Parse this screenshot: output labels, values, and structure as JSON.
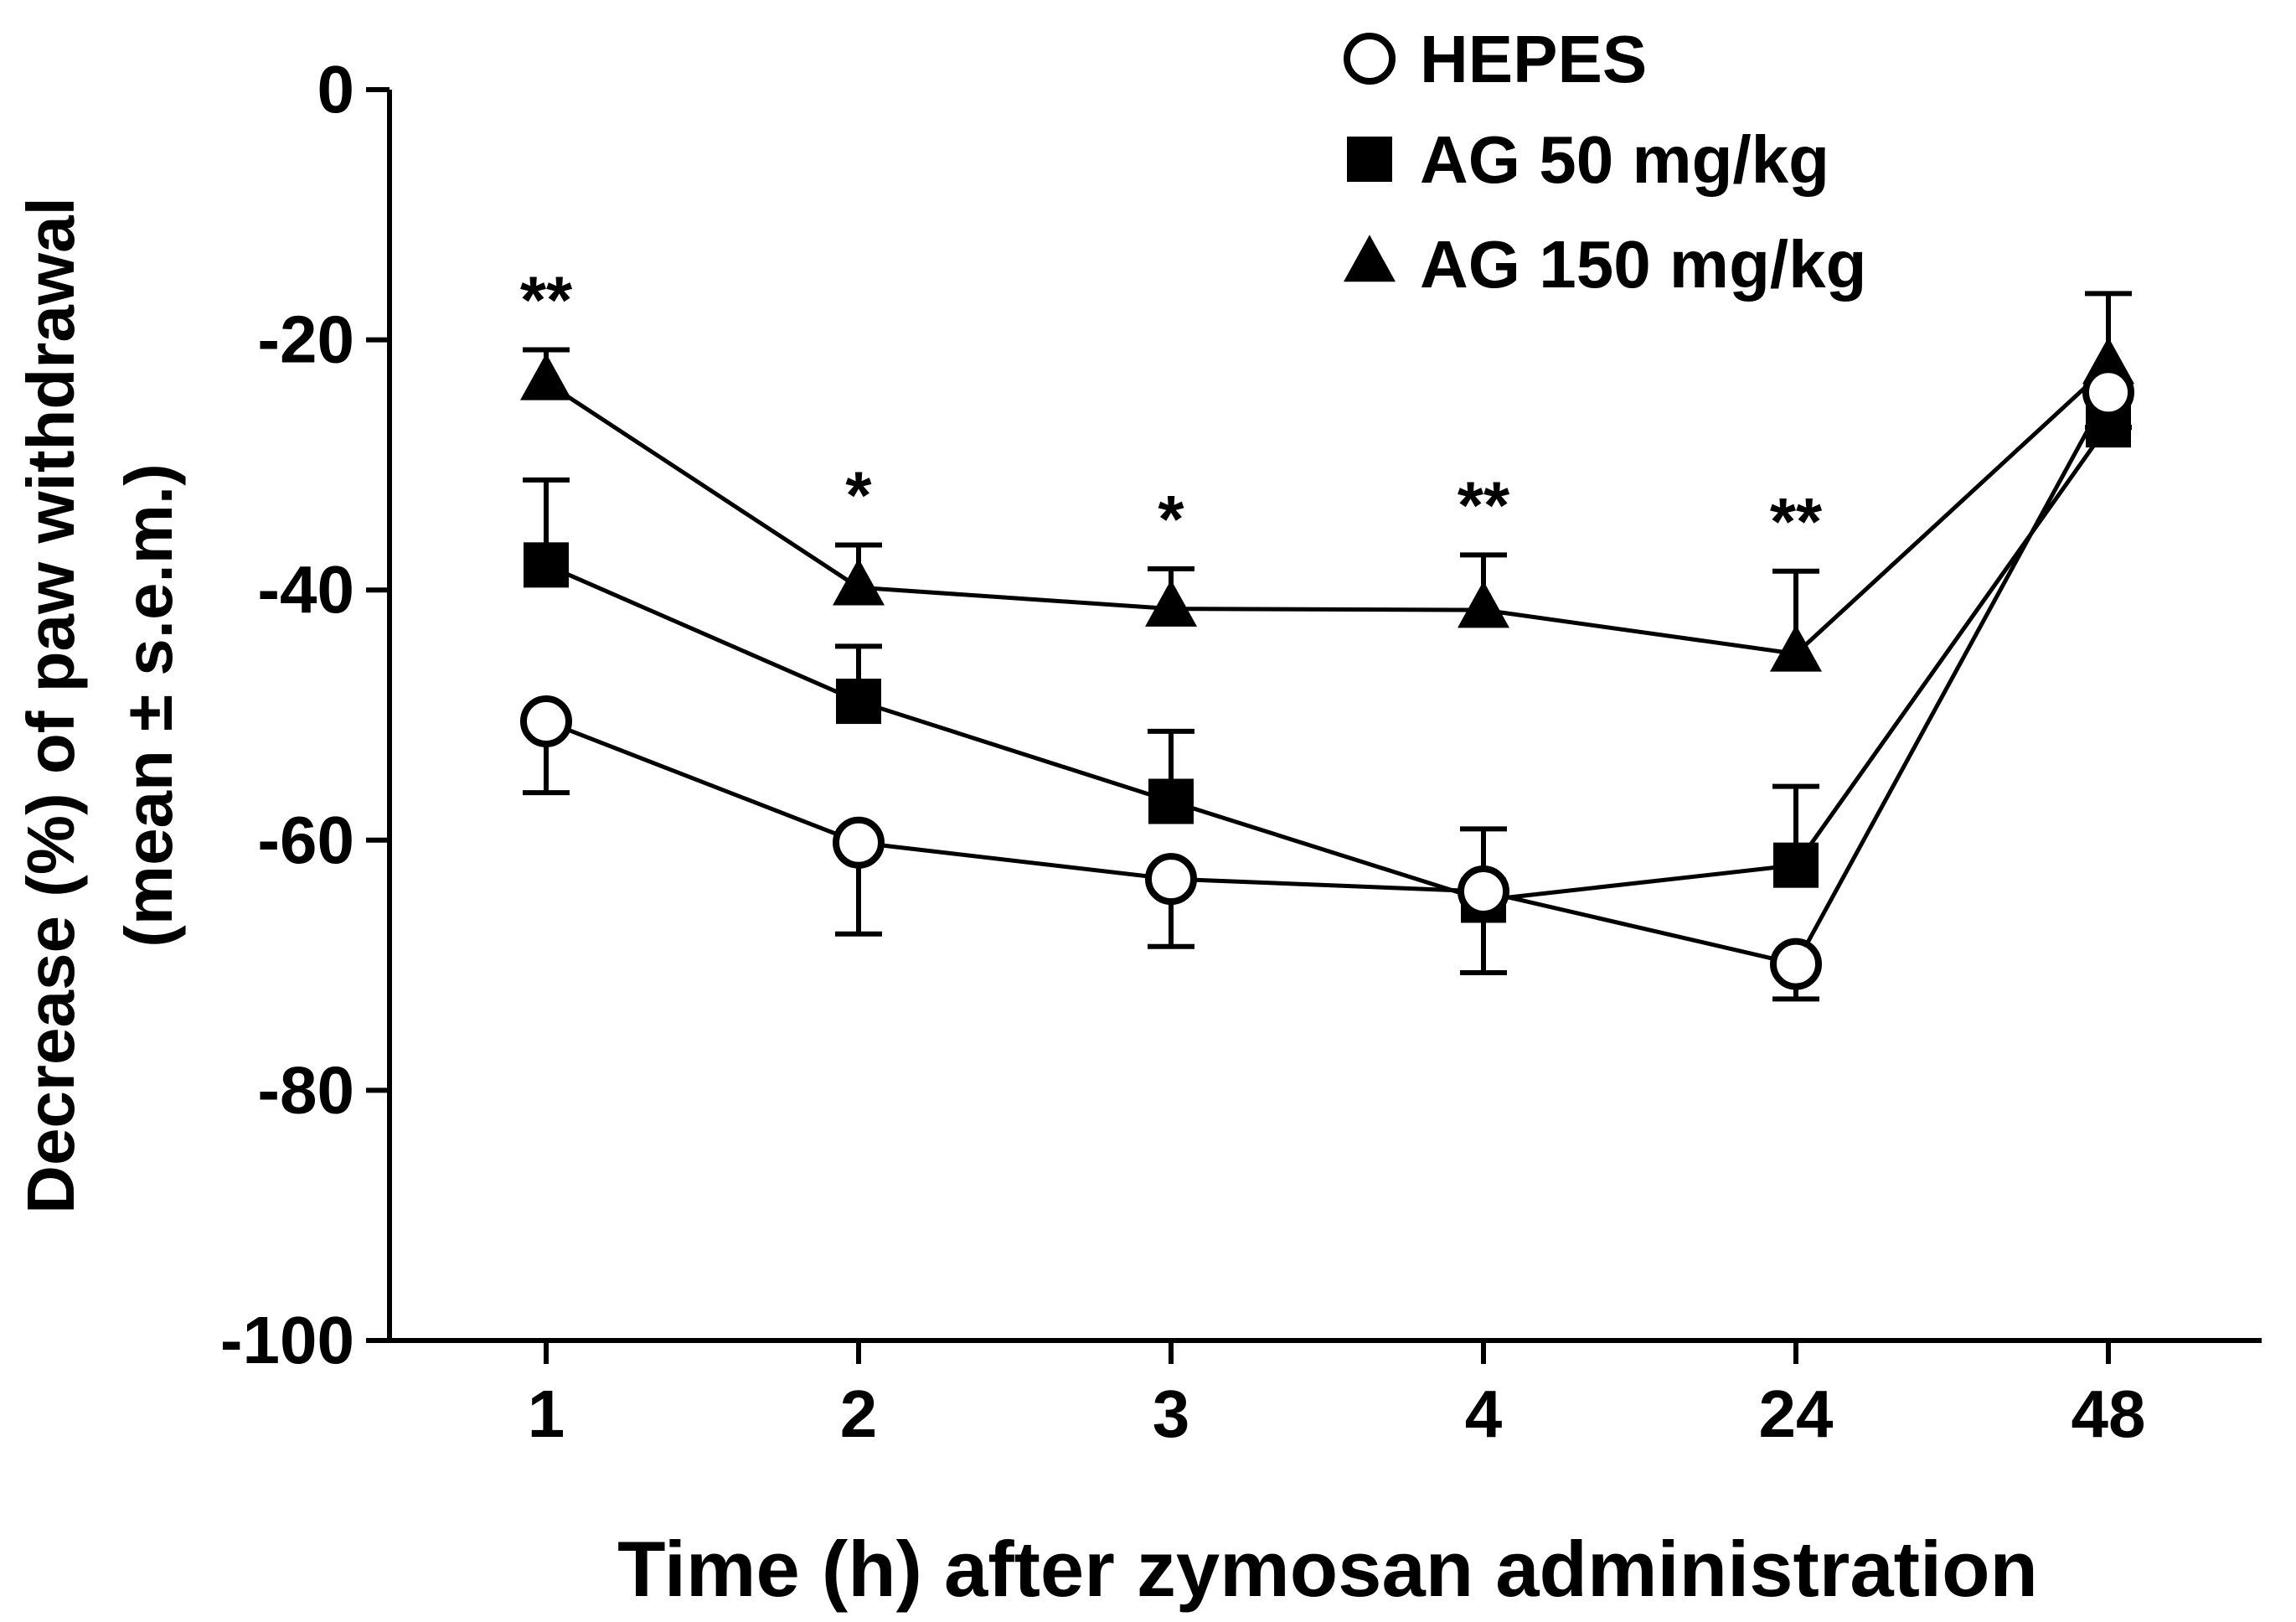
{
  "chart_data": {
    "type": "line",
    "title": "",
    "xlabel": "Time (h) after zymosan administration",
    "ylabel_line1": "Decrease (%) of paw withdrawal",
    "ylabel_line2": "(mean ± s.e.m.)",
    "categories": [
      "1",
      "2",
      "3",
      "4",
      "24",
      "48"
    ],
    "ylim": [
      -100,
      0
    ],
    "yticks": [
      0,
      -20,
      -40,
      -60,
      -80,
      -100
    ],
    "ytick_labels": [
      "0",
      "-20",
      "-40",
      "-60",
      "-80",
      "-100"
    ],
    "legend_position": "top-right",
    "series": [
      {
        "name": "HEPES",
        "marker": "open-circle",
        "values": [
          -50.5,
          -60.2,
          -63.1,
          -64.1,
          -69.9,
          -24.2
        ],
        "errors": [
          5.7,
          7.3,
          5.4,
          6.5,
          2.8,
          2.8
        ]
      },
      {
        "name": "AG 50 mg/kg",
        "marker": "filled-square",
        "values": [
          -38.0,
          -48.9,
          -56.9,
          -64.8,
          -62.0,
          -26.8
        ],
        "errors": [
          6.8,
          4.4,
          5.6,
          5.7,
          6.3,
          2.8
        ]
      },
      {
        "name": "AG 150 mg/kg",
        "marker": "filled-triangle",
        "values": [
          -23.4,
          -39.8,
          -41.5,
          -41.6,
          -45.1,
          -22.1
        ],
        "errors": [
          2.6,
          3.4,
          3.2,
          4.4,
          6.6,
          5.8
        ]
      }
    ],
    "annotations": [
      "**",
      "*",
      "*",
      "**",
      "**",
      ""
    ]
  },
  "colors": {
    "line": "#000000",
    "open_marker_fill": "#ffffff"
  }
}
